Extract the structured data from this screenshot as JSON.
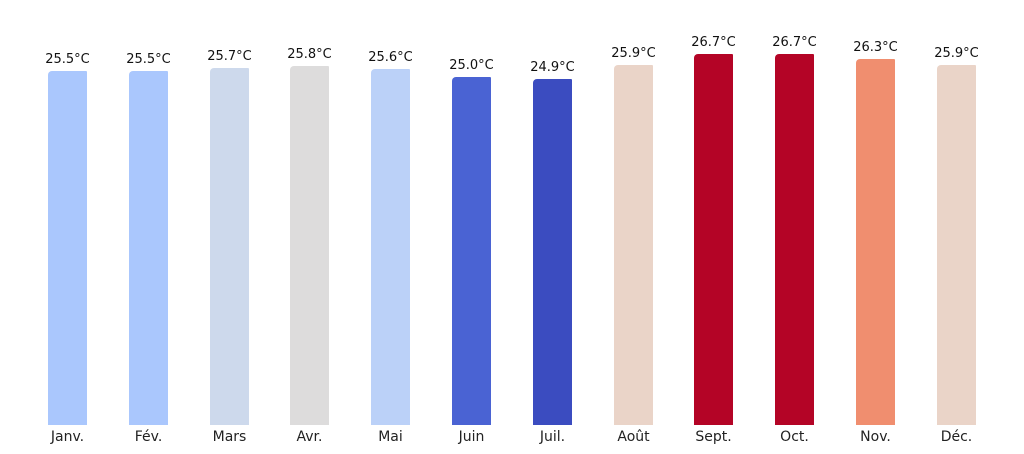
{
  "chart_data": {
    "type": "bar",
    "title": "",
    "xlabel": "",
    "ylabel": "",
    "categories": [
      "Janv.",
      "Fév.",
      "Mars",
      "Avr.",
      "Mai",
      "Juin",
      "Juil.",
      "Août",
      "Sept.",
      "Oct.",
      "Nov.",
      "Déc."
    ],
    "values": [
      25.5,
      25.5,
      25.7,
      25.8,
      25.6,
      25.0,
      24.9,
      25.9,
      26.7,
      26.7,
      26.3,
      25.9
    ],
    "value_labels": [
      "25.5°C",
      "25.5°C",
      "25.7°C",
      "25.8°C",
      "25.6°C",
      "25.0°C",
      "24.9°C",
      "25.9°C",
      "26.7°C",
      "26.7°C",
      "26.3°C",
      "25.9°C"
    ],
    "unit": "°C",
    "colors": [
      "#aac7fd",
      "#aac7fd",
      "#cdd9ec",
      "#dddcdc",
      "#bbd1f8",
      "#4a63d3",
      "#3b4cc0",
      "#ead4c8",
      "#b40426",
      "#b40426",
      "#f08e6f",
      "#ead4c8"
    ],
    "colormap": "coolwarm",
    "ylim": [
      0,
      26.7
    ],
    "grid": false,
    "legend": null,
    "axes_visible": false
  }
}
